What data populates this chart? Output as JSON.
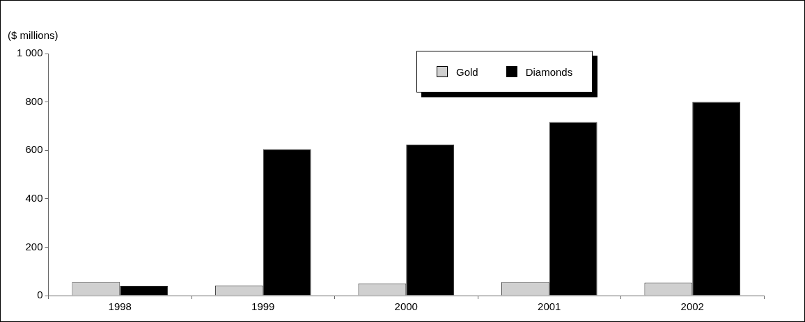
{
  "chart_data": {
    "type": "bar",
    "ylabel": "($ millions)",
    "categories": [
      "1998",
      "1999",
      "2000",
      "2001",
      "2002"
    ],
    "series": [
      {
        "name": "Gold",
        "color": "#d0d0d0",
        "values": [
          55,
          42,
          50,
          55,
          53
        ]
      },
      {
        "name": "Diamonds",
        "color": "#000000",
        "values": [
          40,
          605,
          624,
          717,
          800
        ]
      }
    ],
    "ylim": [
      0,
      1000
    ],
    "yticks": [
      0,
      200,
      400,
      600,
      800,
      {
        "value": 1000,
        "label": "1 000"
      }
    ],
    "grid": false,
    "legend": "top"
  }
}
